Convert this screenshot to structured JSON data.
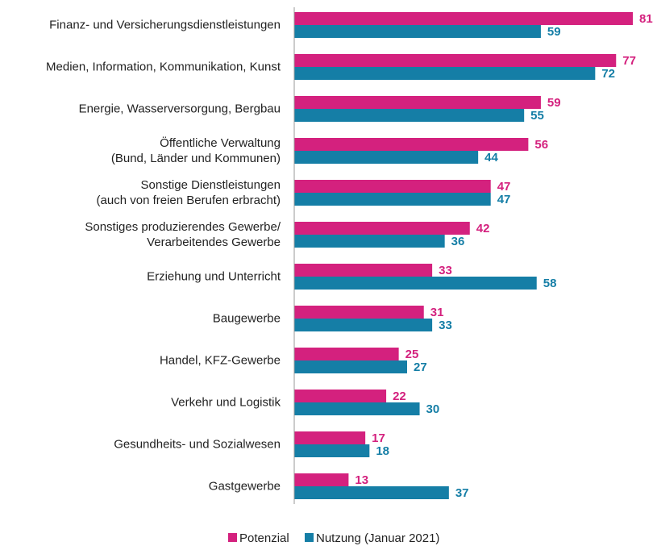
{
  "chart_data": {
    "type": "bar",
    "orientation": "horizontal",
    "categories": [
      "Finanz- und Versicherungsdienstleistungen",
      "Medien, Information, Kommunikation, Kunst",
      "Energie, Wasserversorgung, Bergbau",
      "Öffentliche Verwaltung\n(Bund, Länder und Kommunen)",
      "Sonstige Dienstleistungen\n(auch von freien Berufen erbracht)",
      "Sonstiges produzierendes Gewerbe/\nVerarbeitendes Gewerbe",
      "Erziehung und Unterricht",
      "Baugewerbe",
      "Handel, KFZ-Gewerbe",
      "Verkehr und Logistik",
      "Gesundheits- und Sozialwesen",
      "Gastgewerbe"
    ],
    "series": [
      {
        "name": "Potenzial",
        "color": "#d4217e",
        "values": [
          81,
          77,
          59,
          56,
          47,
          42,
          33,
          31,
          25,
          22,
          17,
          13
        ]
      },
      {
        "name": "Nutzung (Januar 2021)",
        "color": "#157ea6",
        "values": [
          59,
          72,
          55,
          44,
          47,
          36,
          58,
          33,
          27,
          30,
          18,
          37
        ]
      }
    ]
  }
}
